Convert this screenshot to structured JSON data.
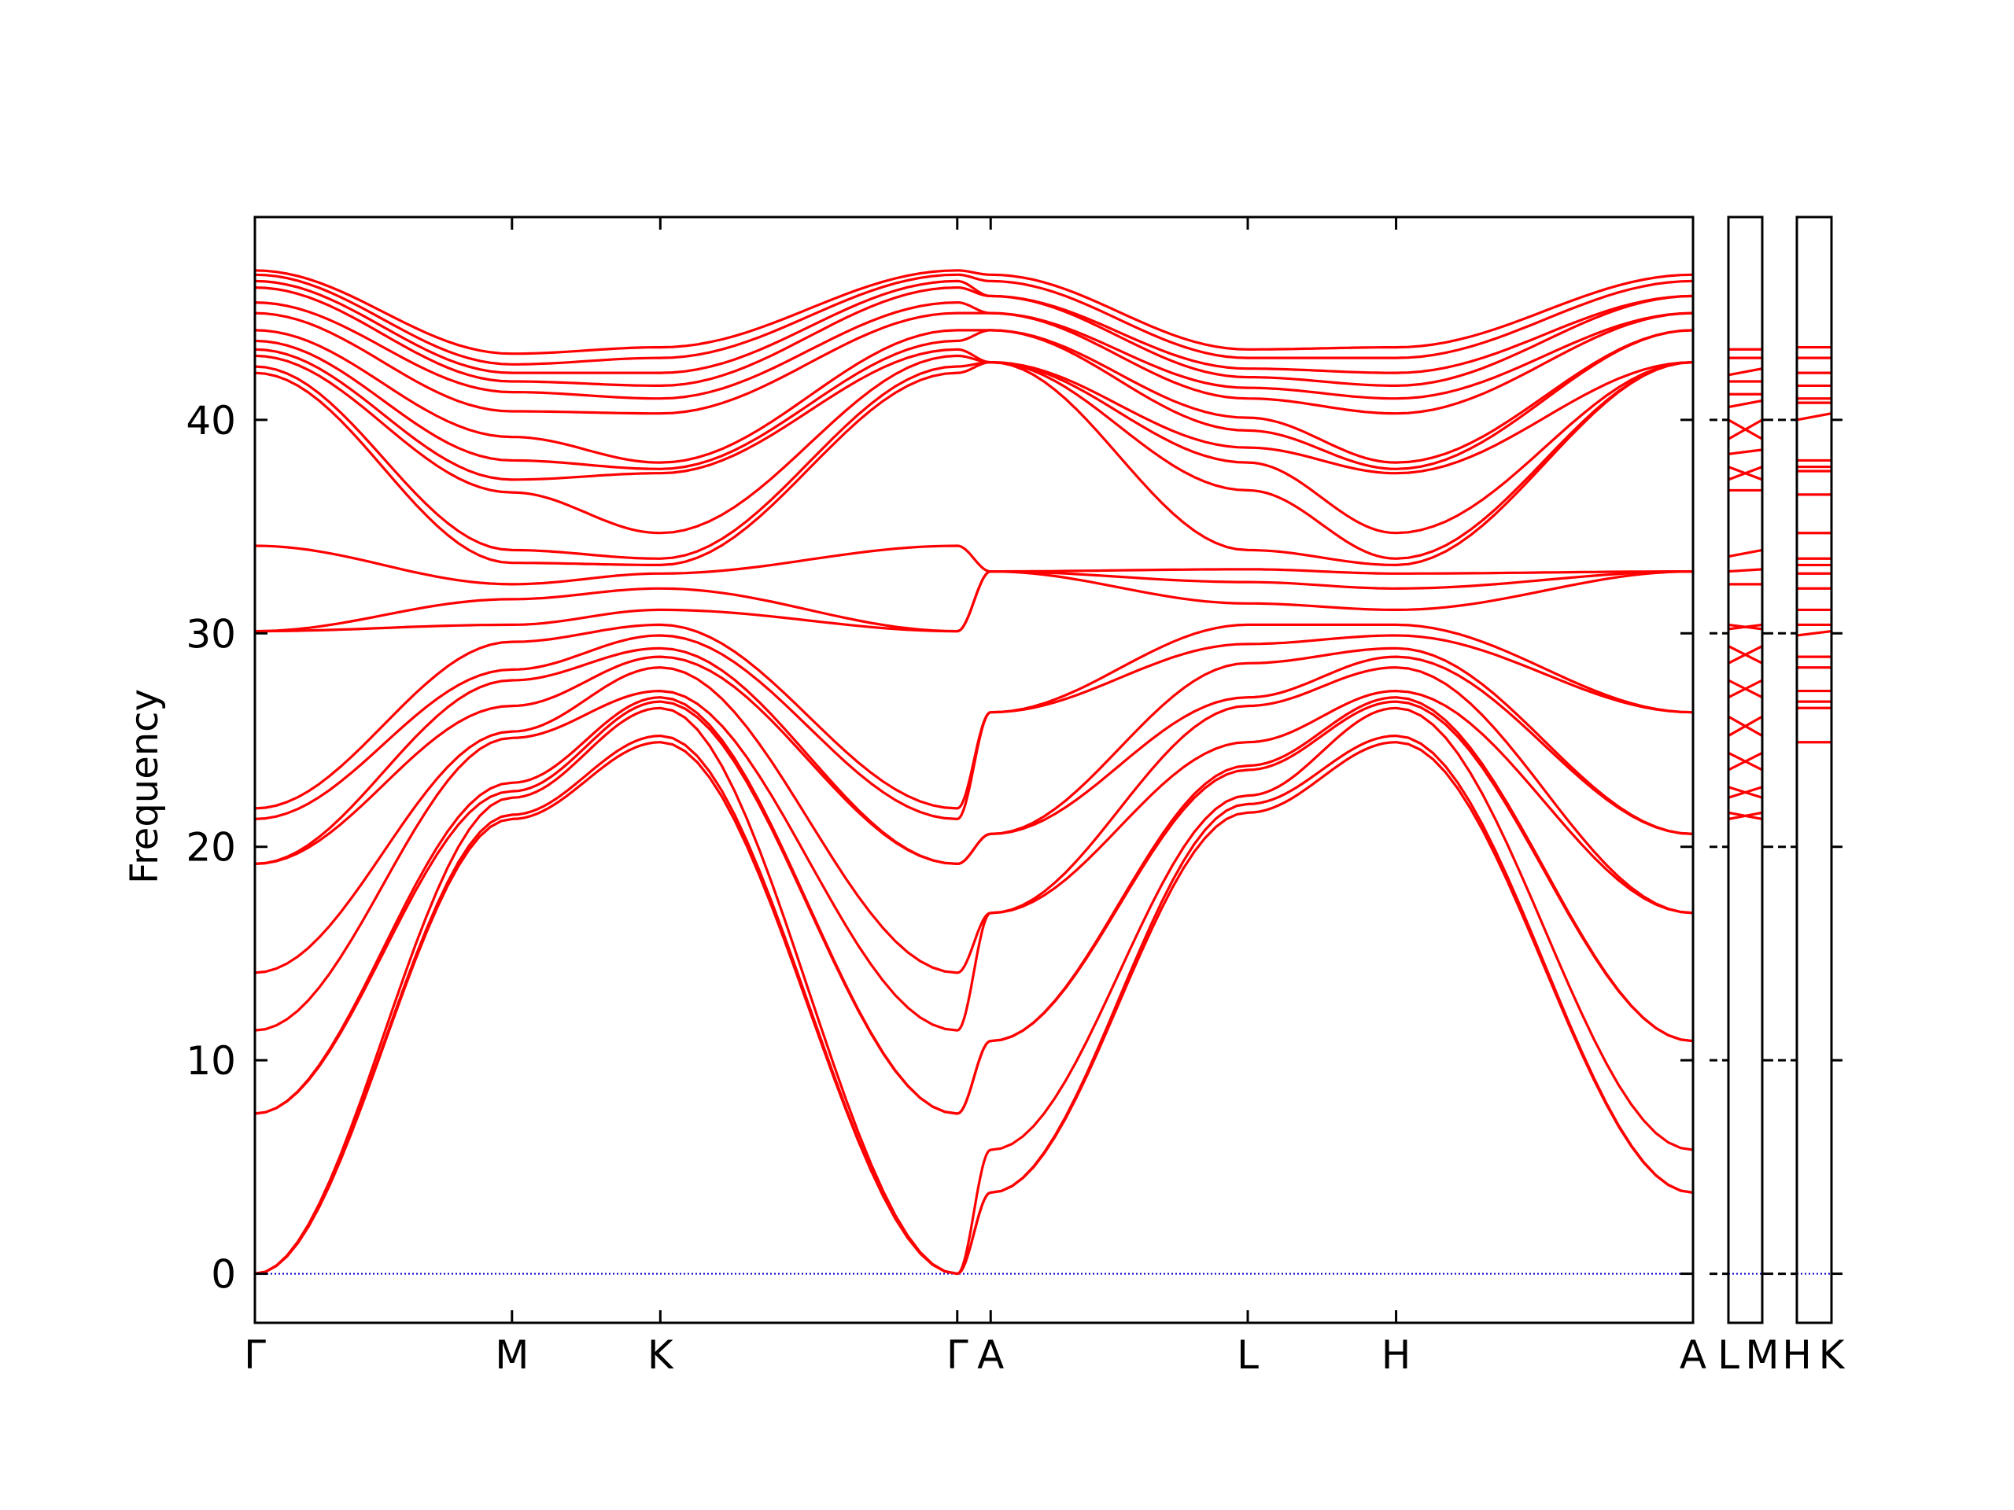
{
  "chart_data": {
    "type": "line",
    "title": "",
    "xlabel": "",
    "ylabel": "Frequency",
    "ylim": [
      -2.3,
      49.5
    ],
    "yticks": [
      0,
      10,
      20,
      30,
      40
    ],
    "grid": false,
    "legend": "none",
    "line_color": "#ff0000",
    "zero_line_color": "#0000cc",
    "panels": [
      {
        "segments": [
          {
            "from": "Γ",
            "to": "M",
            "len": 1.0
          },
          {
            "from": "M",
            "to": "K",
            "len": 0.577
          },
          {
            "from": "K",
            "to": "Γ",
            "len": 1.155
          },
          {
            "from": "Γ",
            "to": "A",
            "len": 0.13
          },
          {
            "from": "A",
            "to": "L",
            "len": 1.0
          },
          {
            "from": "L",
            "to": "H",
            "len": 0.577
          },
          {
            "from": "H",
            "to": "A",
            "len": 1.155
          }
        ],
        "tick_labels": [
          "Γ",
          "M",
          "K",
          "Γ",
          "A",
          "L",
          "H",
          "A"
        ]
      },
      {
        "segments": [
          {
            "from": "L",
            "to": "M",
            "len": 0.13
          }
        ],
        "tick_labels": [
          "L",
          "M"
        ]
      },
      {
        "segments": [
          {
            "from": "H",
            "to": "K",
            "len": 0.13
          }
        ],
        "tick_labels": [
          "H",
          "K"
        ]
      }
    ],
    "series": [
      {
        "values": [
          0,
          21.3,
          24.9,
          0,
          3.8,
          21.6,
          24.9,
          3.8
        ]
      },
      {
        "values": [
          0,
          21.5,
          25.2,
          0,
          3.8,
          22.0,
          25.2,
          3.8
        ]
      },
      {
        "values": [
          0,
          22.3,
          26.5,
          0,
          5.8,
          22.4,
          26.5,
          5.8
        ]
      },
      {
        "values": [
          7.5,
          22.6,
          26.8,
          7.5,
          10.9,
          23.6,
          26.8,
          10.9
        ]
      },
      {
        "values": [
          7.5,
          23.0,
          27.0,
          7.5,
          10.9,
          23.8,
          27.0,
          10.9
        ]
      },
      {
        "values": [
          11.4,
          25.1,
          27.3,
          11.4,
          16.9,
          24.9,
          27.3,
          16.9
        ]
      },
      {
        "values": [
          14.1,
          25.4,
          28.4,
          14.1,
          16.9,
          26.6,
          28.4,
          16.9
        ]
      },
      {
        "values": [
          19.2,
          26.6,
          28.9,
          19.2,
          20.6,
          27.0,
          28.9,
          20.6
        ]
      },
      {
        "values": [
          19.2,
          27.8,
          29.3,
          19.2,
          20.6,
          28.6,
          29.3,
          20.6
        ]
      },
      {
        "values": [
          21.3,
          28.3,
          29.9,
          21.3,
          26.3,
          29.5,
          29.9,
          26.3
        ]
      },
      {
        "values": [
          21.8,
          29.6,
          30.4,
          21.8,
          26.3,
          30.4,
          30.4,
          26.3
        ]
      },
      {
        "values": [
          30.1,
          30.4,
          31.1,
          30.1,
          32.9,
          31.4,
          31.1,
          32.9
        ]
      },
      {
        "values": [
          30.1,
          31.6,
          32.1,
          30.1,
          32.9,
          32.4,
          32.1,
          32.9
        ]
      },
      {
        "values": [
          34.1,
          32.3,
          32.8,
          34.1,
          32.9,
          33.0,
          32.8,
          32.9
        ]
      },
      {
        "values": [
          42.2,
          33.3,
          33.2,
          42.2,
          42.7,
          33.9,
          33.2,
          42.7
        ]
      },
      {
        "values": [
          42.5,
          33.9,
          33.5,
          42.5,
          42.7,
          36.7,
          33.5,
          42.7
        ]
      },
      {
        "values": [
          43.0,
          36.6,
          34.7,
          43.0,
          42.7,
          38.0,
          34.7,
          42.7
        ]
      },
      {
        "values": [
          43.3,
          37.2,
          37.5,
          43.3,
          42.7,
          38.7,
          37.5,
          42.7
        ]
      },
      {
        "values": [
          43.7,
          38.1,
          37.7,
          43.7,
          44.2,
          39.5,
          37.7,
          44.2
        ]
      },
      {
        "values": [
          44.2,
          39.2,
          38.0,
          44.2,
          44.2,
          40.1,
          38.0,
          44.2
        ]
      },
      {
        "values": [
          45.0,
          40.4,
          40.3,
          45.0,
          45.0,
          41.0,
          40.3,
          45.0
        ]
      },
      {
        "values": [
          45.5,
          41.3,
          41.0,
          45.5,
          45.0,
          41.5,
          41.0,
          45.0
        ]
      },
      {
        "values": [
          46.2,
          41.8,
          41.6,
          46.2,
          45.8,
          42.0,
          41.6,
          45.8
        ]
      },
      {
        "values": [
          46.5,
          42.2,
          42.2,
          46.5,
          45.8,
          42.4,
          42.2,
          45.8
        ]
      },
      {
        "values": [
          46.8,
          42.6,
          42.9,
          46.8,
          46.5,
          42.9,
          42.9,
          46.5
        ]
      },
      {
        "values": [
          47.0,
          43.1,
          43.4,
          47.0,
          46.8,
          43.3,
          43.4,
          46.8
        ]
      }
    ],
    "lm_values": [
      [
        21.3,
        21.6
      ],
      [
        21.6,
        21.3
      ],
      [
        22.3,
        22.8
      ],
      [
        22.8,
        22.3
      ],
      [
        23.6,
        24.4
      ],
      [
        24.4,
        23.6
      ],
      [
        25.2,
        26.1
      ],
      [
        26.1,
        25.2
      ],
      [
        27.0,
        27.8
      ],
      [
        27.8,
        27.0
      ],
      [
        28.6,
        29.4
      ],
      [
        29.4,
        28.6
      ],
      [
        30.2,
        30.4
      ],
      [
        30.4,
        30.2
      ],
      [
        32.3,
        32.3
      ],
      [
        32.9,
        33.0
      ],
      [
        33.6,
        33.9
      ],
      [
        36.7,
        36.7
      ],
      [
        37.2,
        37.8
      ],
      [
        37.8,
        37.2
      ],
      [
        38.4,
        38.6
      ],
      [
        39.1,
        40.0
      ],
      [
        40.0,
        39.1
      ],
      [
        40.6,
        40.9
      ],
      [
        41.2,
        41.2
      ],
      [
        41.8,
        41.8
      ],
      [
        42.1,
        42.4
      ],
      [
        42.9,
        42.9
      ],
      [
        43.3,
        43.3
      ]
    ],
    "hk_values": [
      [
        24.9,
        24.9
      ],
      [
        26.5,
        26.5
      ],
      [
        26.8,
        26.8
      ],
      [
        27.3,
        27.3
      ],
      [
        28.4,
        28.4
      ],
      [
        28.9,
        28.9
      ],
      [
        29.9,
        30.1
      ],
      [
        30.4,
        30.4
      ],
      [
        31.1,
        31.1
      ],
      [
        32.1,
        32.1
      ],
      [
        32.8,
        32.8
      ],
      [
        33.2,
        33.2
      ],
      [
        33.5,
        33.5
      ],
      [
        34.7,
        34.7
      ],
      [
        36.5,
        36.5
      ],
      [
        37.6,
        37.6
      ],
      [
        37.8,
        37.8
      ],
      [
        38.1,
        38.1
      ],
      [
        40.0,
        40.3
      ],
      [
        40.8,
        40.8
      ],
      [
        41.0,
        41.0
      ],
      [
        41.6,
        41.6
      ],
      [
        42.2,
        42.2
      ],
      [
        42.9,
        42.9
      ],
      [
        43.4,
        43.4
      ]
    ]
  }
}
